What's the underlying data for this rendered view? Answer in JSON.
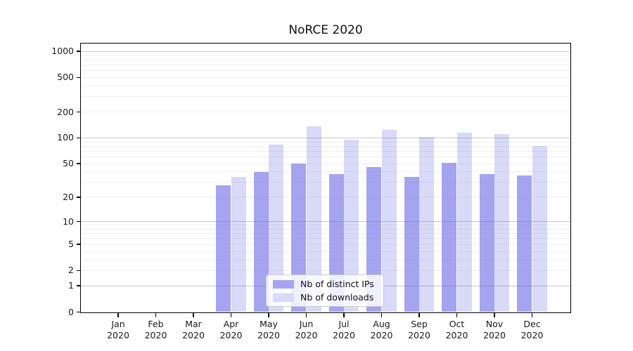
{
  "figure": {
    "title": "NoRCE 2020",
    "background": "#ffffff"
  },
  "chart_data": {
    "type": "bar",
    "title": "NoRCE 2020",
    "x_categories": [
      "Jan",
      "Feb",
      "Mar",
      "Apr",
      "May",
      "Jun",
      "Jul",
      "Aug",
      "Sep",
      "Oct",
      "Nov",
      "Dec"
    ],
    "x_year_label": "2020",
    "series": [
      {
        "name": "Nb of distinct IPs",
        "color": "#a4a4f1",
        "values": [
          0,
          0,
          0,
          28,
          40,
          50,
          38,
          46,
          35,
          51,
          38,
          36
        ]
      },
      {
        "name": "Nb of downloads",
        "color": "#d9d9f8",
        "values": [
          0,
          0,
          0,
          35,
          84,
          135,
          96,
          125,
          103,
          115,
          110,
          81
        ]
      }
    ],
    "y_scale": "log1p",
    "y_tick_values": [
      0,
      1,
      2,
      5,
      10,
      20,
      50,
      100,
      200,
      500,
      1000
    ],
    "y_major_gridlines": [
      1,
      10,
      100,
      1000
    ],
    "ylim": [
      0,
      1200
    ],
    "grid": "horizontal minor+major, drawn above bars",
    "legend": {
      "position": "lower-center"
    }
  }
}
